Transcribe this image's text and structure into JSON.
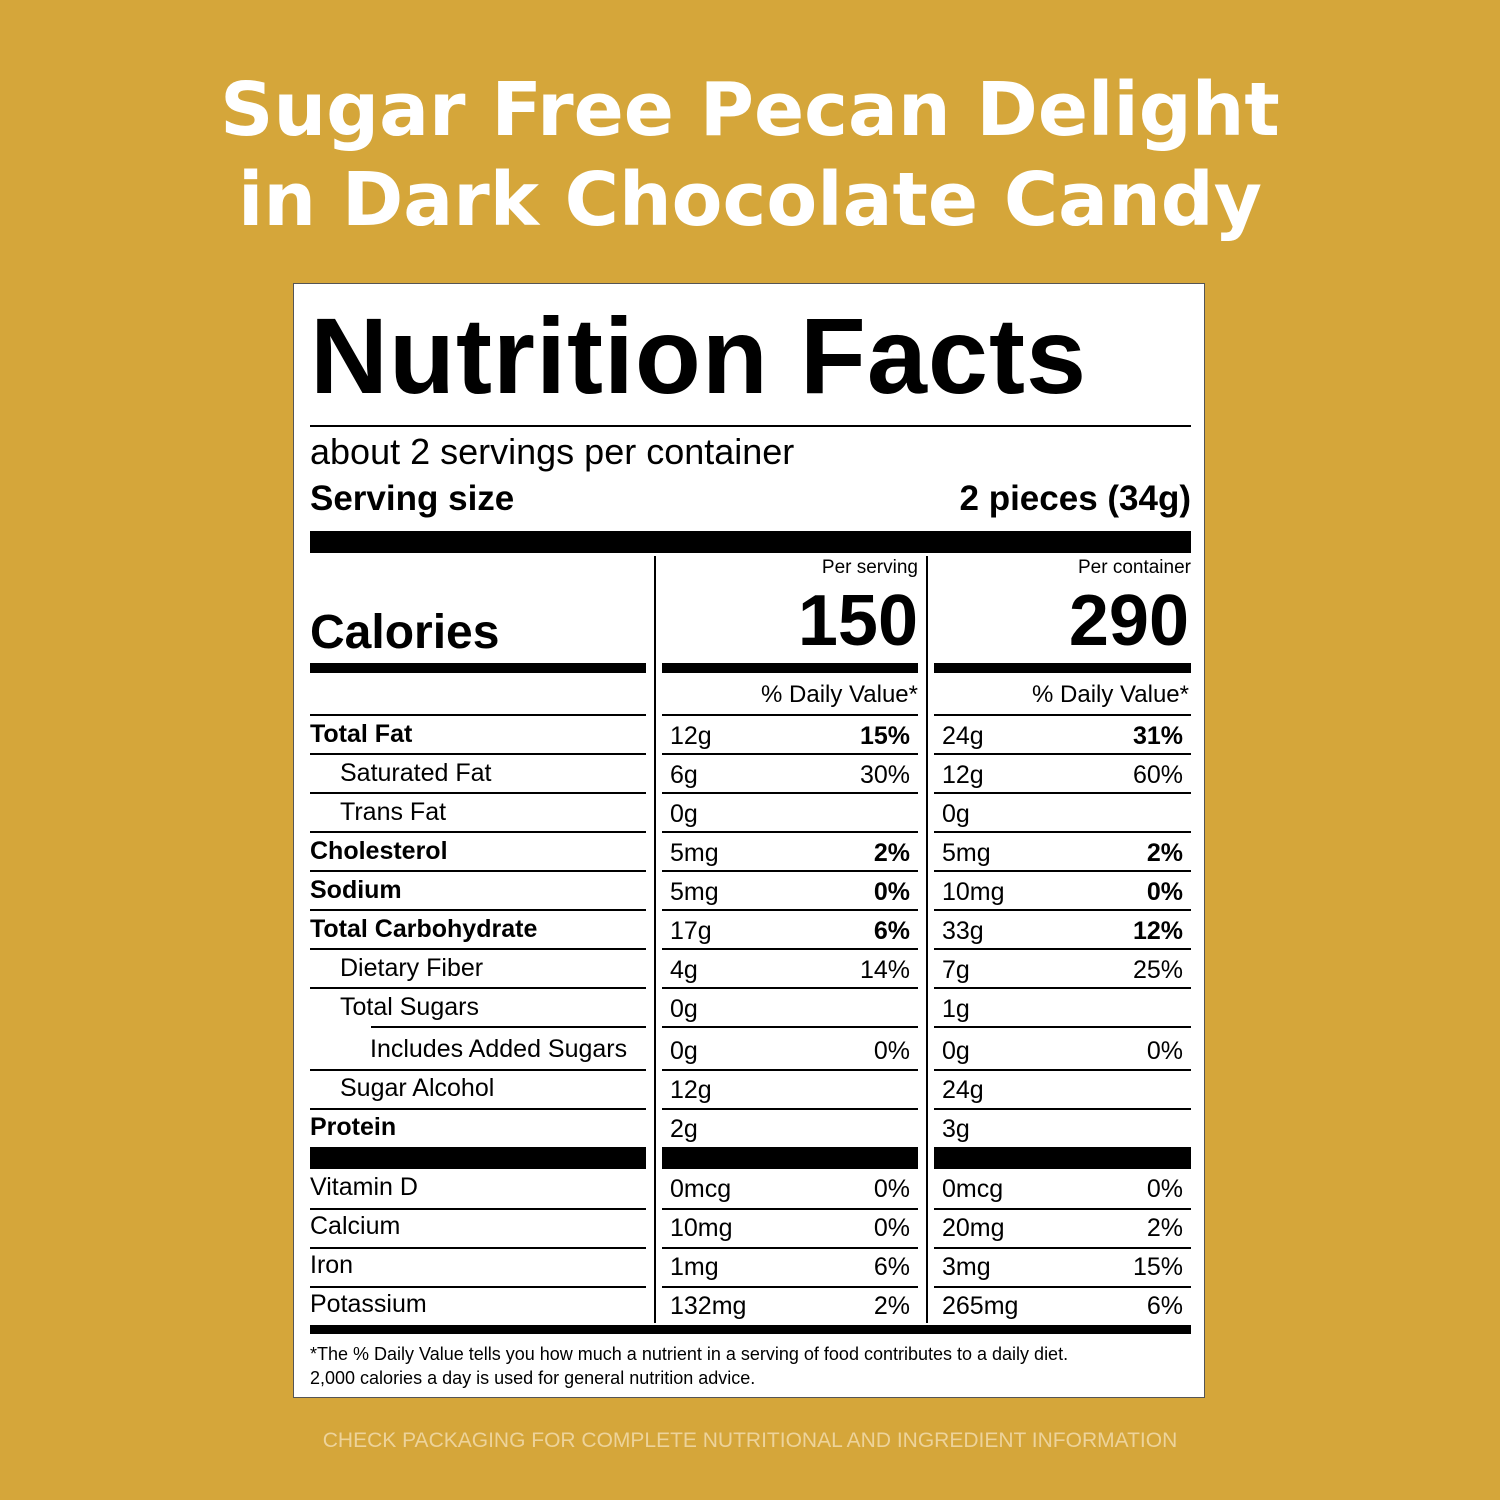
{
  "header": {
    "title_lines": [
      "Sugar Free Pecan Delight",
      "in Dark Chocolate Candy"
    ]
  },
  "label": {
    "title": "Nutrition Facts",
    "servings": "about 2 servings per container",
    "serving_size_label": "Serving size",
    "serving_size": "2 pieces (34g)",
    "per_serving_label": "Per serving",
    "per_container_label": "Per container",
    "calories_label": "Calories",
    "calories": {
      "serving": 150,
      "container": 290
    },
    "dv_header": "% Daily Value*",
    "nutrients": [
      {
        "name": "Total Fat",
        "serving": {
          "amount": "12g",
          "dv": "15%"
        },
        "container": {
          "amount": "24g",
          "dv": "31%"
        }
      },
      {
        "name": "Saturated Fat",
        "serving": {
          "amount": "6g",
          "dv": "30%"
        },
        "container": {
          "amount": "12g",
          "dv": "60%"
        }
      },
      {
        "name": "Trans Fat",
        "serving": {
          "amount": "0g"
        },
        "container": {
          "amount": "0g"
        }
      },
      {
        "name": "Cholesterol",
        "serving": {
          "amount": "5mg",
          "dv": "2%"
        },
        "container": {
          "amount": "5mg",
          "dv": "2%"
        }
      },
      {
        "name": "Sodium",
        "serving": {
          "amount": "5mg",
          "dv": "0%"
        },
        "container": {
          "amount": "10mg",
          "dv": "0%"
        }
      },
      {
        "name": "Total Carbohydrate",
        "serving": {
          "amount": "17g",
          "dv": "6%"
        },
        "container": {
          "amount": "33g",
          "dv": "12%"
        }
      },
      {
        "name": "Dietary Fiber",
        "serving": {
          "amount": "4g",
          "dv": "14%"
        },
        "container": {
          "amount": "7g",
          "dv": "25%"
        }
      },
      {
        "name": "Total Sugars",
        "serving": {
          "amount": "0g"
        },
        "container": {
          "amount": "1g"
        }
      },
      {
        "name": "Includes Added Sugars",
        "serving": {
          "amount": "0g",
          "dv": "0%"
        },
        "container": {
          "amount": "0g",
          "dv": "0%"
        }
      },
      {
        "name": "Sugar Alcohol",
        "serving": {
          "amount": "12g"
        },
        "container": {
          "amount": "24g"
        }
      },
      {
        "name": "Protein",
        "serving": {
          "amount": "2g"
        },
        "container": {
          "amount": "3g"
        }
      }
    ],
    "vitamins": [
      {
        "name": "Vitamin D",
        "serving": {
          "amount": "0mcg",
          "dv": "0%"
        },
        "container": {
          "amount": "0mcg",
          "dv": "0%"
        }
      },
      {
        "name": "Calcium",
        "serving": {
          "amount": "10mg",
          "dv": "0%"
        },
        "container": {
          "amount": "20mg",
          "dv": "2%"
        }
      },
      {
        "name": "Iron",
        "serving": {
          "amount": "1mg",
          "dv": "6%"
        },
        "container": {
          "amount": "3mg",
          "dv": "15%"
        }
      },
      {
        "name": "Potassium",
        "serving": {
          "amount": "132mg",
          "dv": "2%"
        },
        "container": {
          "amount": "265mg",
          "dv": "6%"
        }
      }
    ],
    "footnote_lines": [
      "*The % Daily Value tells you how much a nutrient in a serving of food contributes to a daily diet.",
      "2,000 calories a day is used for general nutrition advice."
    ]
  },
  "disclaimer": "CHECK PACKAGING FOR COMPLETE NUTRITIONAL AND INGREDIENT INFORMATION"
}
